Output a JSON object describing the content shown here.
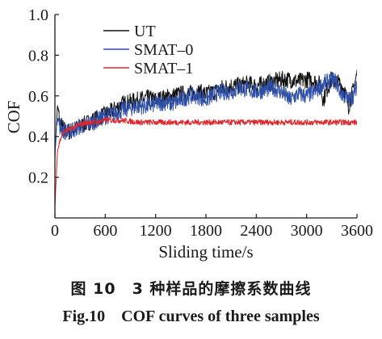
{
  "chart_data": {
    "type": "line",
    "title": "",
    "xlabel": "Sliding time/s",
    "ylabel": "COF",
    "xlim": [
      0,
      3600
    ],
    "ylim": [
      0,
      1.0
    ],
    "x_ticks": [
      0,
      600,
      1200,
      1800,
      2400,
      3000,
      3600
    ],
    "x_tick_labels": [
      "0",
      "600",
      "1200",
      "1800",
      "2400",
      "3000",
      "3600"
    ],
    "y_ticks": [
      0.2,
      0.4,
      0.6,
      0.8,
      1.0
    ],
    "y_tick_labels": [
      "0.2",
      "0.4",
      "0.6",
      "0.8",
      "1.0"
    ],
    "grid": false,
    "legend_position": "top-left",
    "series": [
      {
        "name": "UT",
        "color": "#111111",
        "x": [
          0,
          30,
          60,
          100,
          150,
          200,
          250,
          300,
          400,
          500,
          600,
          700,
          800,
          900,
          1000,
          1100,
          1200,
          1300,
          1400,
          1500,
          1600,
          1700,
          1800,
          1900,
          2000,
          2100,
          2200,
          2300,
          2400,
          2500,
          2600,
          2700,
          2800,
          2900,
          3000,
          3050,
          3100,
          3150,
          3200,
          3250,
          3300,
          3350,
          3400,
          3450,
          3500,
          3550,
          3600
        ],
        "y": [
          0.3,
          0.55,
          0.47,
          0.44,
          0.42,
          0.43,
          0.44,
          0.45,
          0.47,
          0.49,
          0.51,
          0.53,
          0.56,
          0.57,
          0.58,
          0.59,
          0.58,
          0.59,
          0.6,
          0.61,
          0.61,
          0.62,
          0.61,
          0.62,
          0.64,
          0.65,
          0.65,
          0.66,
          0.65,
          0.66,
          0.67,
          0.68,
          0.68,
          0.67,
          0.68,
          0.68,
          0.67,
          0.66,
          0.58,
          0.64,
          0.68,
          0.67,
          0.66,
          0.63,
          0.55,
          0.62,
          0.71
        ]
      },
      {
        "name": "SMAT–0",
        "color": "#2e4fa8",
        "x": [
          0,
          30,
          60,
          100,
          150,
          200,
          250,
          300,
          400,
          500,
          600,
          700,
          800,
          900,
          1000,
          1100,
          1200,
          1300,
          1400,
          1500,
          1600,
          1700,
          1800,
          1900,
          2000,
          2100,
          2200,
          2300,
          2400,
          2500,
          2600,
          2700,
          2800,
          2900,
          3000,
          3050,
          3100,
          3150,
          3200,
          3250,
          3300,
          3350,
          3400,
          3450,
          3500,
          3550,
          3600
        ],
        "y": [
          0.32,
          0.5,
          0.45,
          0.43,
          0.42,
          0.43,
          0.44,
          0.45,
          0.46,
          0.48,
          0.5,
          0.51,
          0.53,
          0.54,
          0.55,
          0.55,
          0.56,
          0.57,
          0.56,
          0.58,
          0.6,
          0.6,
          0.58,
          0.61,
          0.62,
          0.62,
          0.64,
          0.63,
          0.62,
          0.63,
          0.64,
          0.62,
          0.58,
          0.61,
          0.6,
          0.61,
          0.62,
          0.64,
          0.66,
          0.67,
          0.68,
          0.67,
          0.62,
          0.6,
          0.58,
          0.6,
          0.64
        ]
      },
      {
        "name": "SMAT–1",
        "color": "#e0262b",
        "x": [
          0,
          30,
          60,
          100,
          150,
          200,
          300,
          400,
          500,
          600,
          800,
          1000,
          1200,
          1400,
          1600,
          1800,
          2000,
          2200,
          2400,
          2600,
          2800,
          3000,
          3200,
          3400,
          3600
        ],
        "y": [
          0.05,
          0.33,
          0.38,
          0.42,
          0.43,
          0.44,
          0.46,
          0.47,
          0.47,
          0.48,
          0.48,
          0.47,
          0.47,
          0.47,
          0.47,
          0.47,
          0.47,
          0.47,
          0.47,
          0.47,
          0.47,
          0.47,
          0.47,
          0.47,
          0.47
        ]
      }
    ]
  },
  "caption": {
    "chinese": "图 10 3 种样品的摩擦系数曲线",
    "english": "Fig.10 COF curves of three samples"
  }
}
